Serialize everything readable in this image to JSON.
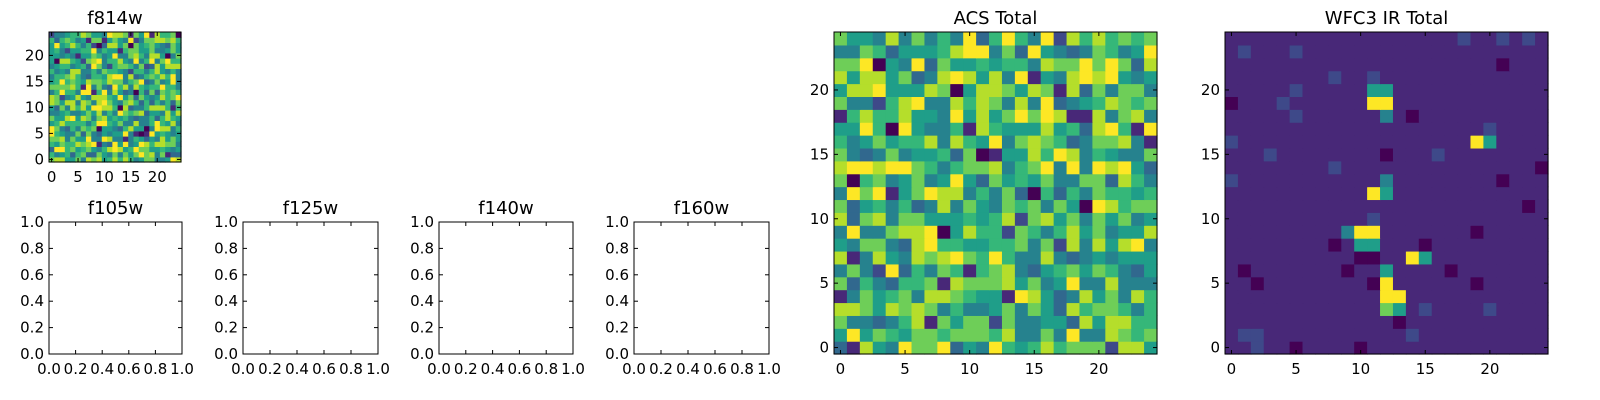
{
  "chart_data": [
    {
      "type": "heatmap",
      "title": "f814w",
      "xlim": [
        -0.5,
        24.5
      ],
      "ylim": [
        -0.5,
        24.5
      ],
      "xticks": [
        0,
        5,
        10,
        15,
        20
      ],
      "yticks": [
        0,
        5,
        10,
        15,
        20
      ],
      "grid_size": 25,
      "colormap": "viridis",
      "pattern": "noise"
    },
    {
      "type": "empty",
      "title": "f105w",
      "xlim": [
        0.0,
        1.0
      ],
      "ylim": [
        0.0,
        1.0
      ],
      "xticks": [
        "0.0",
        "0.2",
        "0.4",
        "0.6",
        "0.8",
        "1.0"
      ],
      "yticks": [
        "0.0",
        "0.2",
        "0.4",
        "0.6",
        "0.8",
        "1.0"
      ]
    },
    {
      "type": "empty",
      "title": "f125w",
      "xlim": [
        0.0,
        1.0
      ],
      "ylim": [
        0.0,
        1.0
      ],
      "xticks": [
        "0.0",
        "0.2",
        "0.4",
        "0.6",
        "0.8",
        "1.0"
      ],
      "yticks": [
        "0.0",
        "0.2",
        "0.4",
        "0.6",
        "0.8",
        "1.0"
      ]
    },
    {
      "type": "empty",
      "title": "f140w",
      "xlim": [
        0.0,
        1.0
      ],
      "ylim": [
        0.0,
        1.0
      ],
      "xticks": [
        "0.0",
        "0.2",
        "0.4",
        "0.6",
        "0.8",
        "1.0"
      ],
      "yticks": [
        "0.0",
        "0.2",
        "0.4",
        "0.6",
        "0.8",
        "1.0"
      ]
    },
    {
      "type": "empty",
      "title": "f160w",
      "xlim": [
        0.0,
        1.0
      ],
      "ylim": [
        0.0,
        1.0
      ],
      "xticks": [
        "0.0",
        "0.2",
        "0.4",
        "0.6",
        "0.8",
        "1.0"
      ],
      "yticks": [
        "0.0",
        "0.2",
        "0.4",
        "0.6",
        "0.8",
        "1.0"
      ]
    },
    {
      "type": "heatmap",
      "title": "ACS Total",
      "xlim": [
        -0.5,
        24.5
      ],
      "ylim": [
        -0.5,
        24.5
      ],
      "xticks": [
        0,
        5,
        10,
        15,
        20
      ],
      "yticks": [
        0,
        5,
        10,
        15,
        20
      ],
      "grid_size": 25,
      "colormap": "viridis",
      "pattern": "noise"
    },
    {
      "type": "heatmap",
      "title": "WFC3 IR Total",
      "xlim": [
        -0.5,
        24.5
      ],
      "ylim": [
        -0.5,
        24.5
      ],
      "xticks": [
        0,
        5,
        10,
        15,
        20
      ],
      "yticks": [
        0,
        5,
        10,
        15,
        20
      ],
      "grid_size": 25,
      "colormap": "viridis",
      "pattern": "background_with_sources",
      "bright_cells": [
        [
          11,
          20,
          0.55
        ],
        [
          12,
          20,
          0.55
        ],
        [
          11,
          19,
          1.0
        ],
        [
          12,
          19,
          1.0
        ],
        [
          12,
          18,
          0.4
        ],
        [
          19,
          16,
          1.0
        ],
        [
          20,
          16,
          0.6
        ],
        [
          11,
          12,
          1.0
        ],
        [
          12,
          12,
          0.55
        ],
        [
          12,
          13,
          0.45
        ],
        [
          10,
          9,
          1.0
        ],
        [
          11,
          9,
          1.0
        ],
        [
          10,
          8,
          0.55
        ],
        [
          11,
          8,
          0.55
        ],
        [
          9,
          9,
          0.4
        ],
        [
          14,
          7,
          1.0
        ],
        [
          15,
          7,
          0.6
        ],
        [
          12,
          6,
          0.6
        ],
        [
          12,
          5,
          1.0
        ],
        [
          12,
          4,
          1.0
        ],
        [
          13,
          4,
          1.0
        ],
        [
          12,
          3,
          0.75
        ],
        [
          13,
          3,
          0.55
        ]
      ]
    }
  ],
  "colors": {
    "axis": "#000000",
    "background": "#ffffff",
    "viridis": [
      "#440154",
      "#482878",
      "#3e4989",
      "#31688e",
      "#26828e",
      "#1f9e89",
      "#35b779",
      "#6ece58",
      "#b5de2b",
      "#fde725"
    ]
  }
}
